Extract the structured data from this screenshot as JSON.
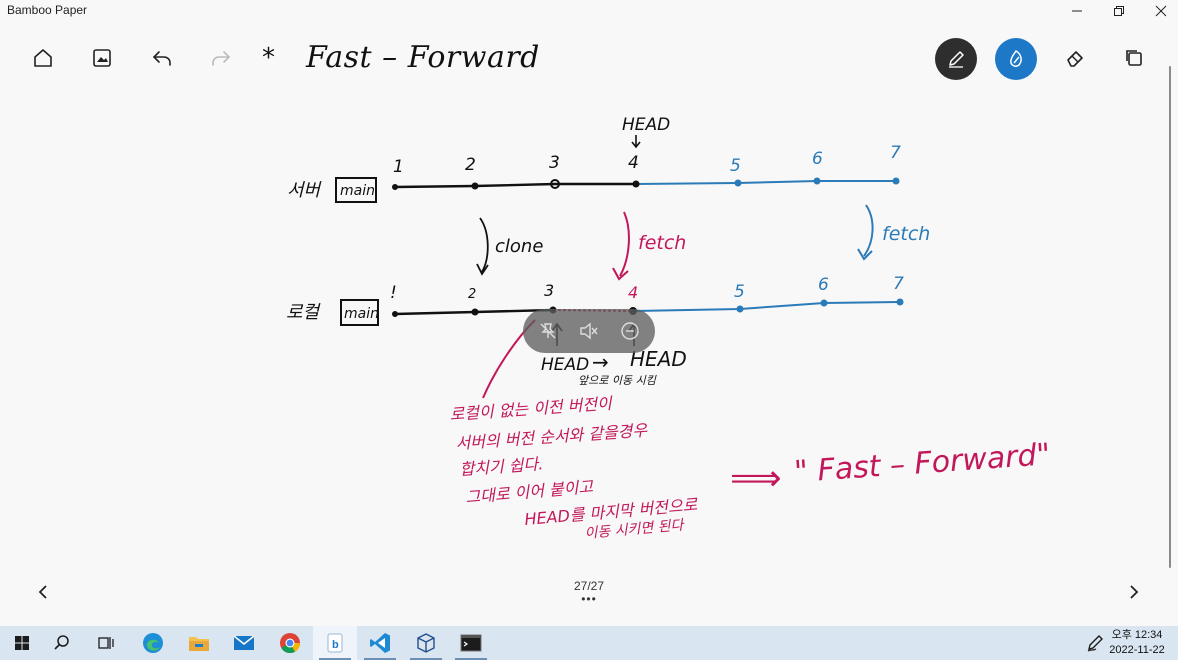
{
  "window": {
    "title": "Bamboo Paper",
    "minimize_glyph": "—",
    "restore_glyph": "❐",
    "close_glyph": "✕"
  },
  "toolbar": {
    "home_icon": "home-icon",
    "photo_icon": "photo-icon",
    "undo_icon": "undo-icon",
    "redo_icon": "redo-icon",
    "star": "*",
    "page_title": "Fast – Forward",
    "pen_color": "#2b2b2b",
    "brush_color": "#1e78c8",
    "eraser_icon": "eraser-icon",
    "copy_icon": "copy-icon"
  },
  "note": {
    "head_top": "HEAD",
    "server_label": "서버",
    "server_branch": "main",
    "local_label": "로컬",
    "local_branch": "main",
    "commits_top": [
      "1",
      "2",
      "3",
      "4",
      "5",
      "6",
      "7"
    ],
    "commits_bottom": [
      "!",
      "2",
      "3",
      "4",
      "5",
      "6",
      "7"
    ],
    "clone_label": "clone",
    "fetch_pink": "fetch",
    "fetch_blue": "fetch",
    "head_left": "HEAD",
    "head_arrow": "→",
    "head_right": "HEAD",
    "head_caption": "앞으로 이동 시킴",
    "korean_lines": [
      "로컬이 없는 이전 버전이",
      "서버의 버전 순서와 같을경우",
      "합치기 쉽다.",
      "그대로 이어 붙이고",
      "HEAD를  마지막 버전으로",
      "이동 시키면 된다"
    ],
    "implies": "⟹",
    "ff_quote": "\" Fast – Forward\"",
    "black": "#111111",
    "blue": "#2b7bb9",
    "pink": "#c2185b"
  },
  "media_overlay": {
    "icons": [
      "pin-off-icon",
      "mute-icon",
      "close-circle-icon"
    ]
  },
  "pager": {
    "prev": "‹",
    "next": "›",
    "page": "27/27",
    "dots": "•••"
  },
  "taskbar": {
    "items": [
      "windows-start-icon",
      "search-icon",
      "task-view-icon",
      "edge-icon",
      "file-explorer-icon",
      "mail-icon",
      "chrome-icon",
      "bamboo-paper-icon",
      "vscode-icon",
      "virtualbox-icon",
      "terminal-icon"
    ],
    "clock_time": "오후 12:34",
    "clock_date": "2022-11-22",
    "pen_tray_icon": "pen-tray-icon"
  }
}
